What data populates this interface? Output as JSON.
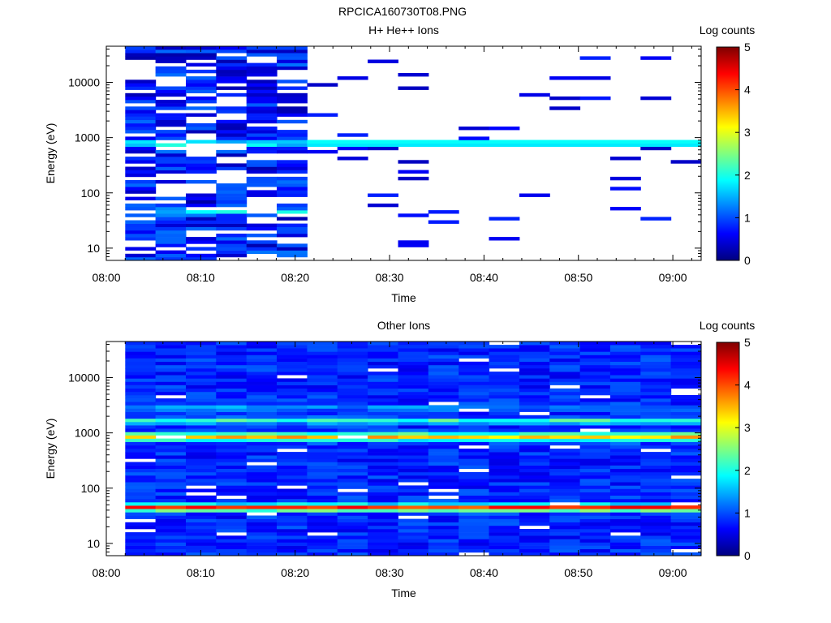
{
  "figure": {
    "title": "RPCICA160730T08.PNG"
  },
  "chart_data": [
    {
      "type": "heatmap",
      "title": "H+ He++ Ions",
      "xlabel": "Time",
      "ylabel": "Energy (eV)",
      "x_ticks": [
        "08:00",
        "08:10",
        "08:20",
        "08:30",
        "08:40",
        "08:50",
        "09:00"
      ],
      "x_range": [
        "08:00",
        "09:03"
      ],
      "y_scale": "log",
      "y_ticks": [
        "10",
        "100",
        "1000",
        "10000"
      ],
      "y_range": [
        6,
        45000
      ],
      "colorbar": {
        "label": "Log counts",
        "ticks": [
          "0",
          "1",
          "2",
          "3",
          "4",
          "5"
        ],
        "range": [
          0,
          5
        ],
        "colormap": "jet"
      },
      "description": "Dense broadband counts 08:02-08:21 (values ~0.3-1.5, peaks ~2 near 700-900 eV and 40-50 eV); after 08:21 a narrow band ~700-1000 eV at ~1.5-2 with sparse low counts elsewhere"
    },
    {
      "type": "heatmap",
      "title": "Other Ions",
      "xlabel": "Time",
      "ylabel": "Energy (eV)",
      "x_ticks": [
        "08:00",
        "08:10",
        "08:20",
        "08:30",
        "08:40",
        "08:50",
        "09:00"
      ],
      "x_range": [
        "08:00",
        "09:03"
      ],
      "y_scale": "log",
      "y_ticks": [
        "10",
        "100",
        "1000",
        "10000"
      ],
      "y_range": [
        6,
        45000
      ],
      "colorbar": {
        "label": "Log counts",
        "ticks": [
          "0",
          "1",
          "2",
          "3",
          "4",
          "5"
        ],
        "range": [
          0,
          5
        ],
        "colormap": "jet"
      },
      "description": "Continuous coverage 08:02-09:03; strong bands at ~35-55 eV (~4-4.5) and ~700-1000 eV (~3.5-4), secondary band ~1500-2000 eV (~2.5), background ~0.5-1"
    }
  ]
}
